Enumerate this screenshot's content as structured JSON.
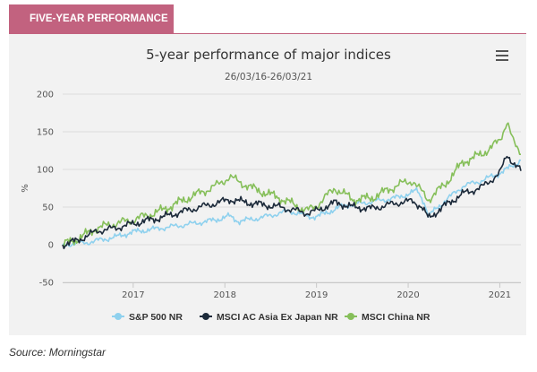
{
  "header": {
    "tab_label": "FIVE-YEAR PERFORMANCE"
  },
  "source": "Source: Morningstar",
  "menu": {
    "icon": "hamburger-menu-icon"
  },
  "chart_data": {
    "type": "line",
    "title": "5-year performance of major indices",
    "subtitle": "26/03/16-26/03/21",
    "xlabel": "",
    "ylabel": "%",
    "ylim": [
      -50,
      200
    ],
    "yticks": [
      200,
      150,
      100,
      50,
      0,
      -50
    ],
    "xlim": [
      2016.23,
      2021.23
    ],
    "xticks": [
      {
        "label": "2017",
        "value": 2017.0
      },
      {
        "label": "2018",
        "value": 2018.0
      },
      {
        "label": "2019",
        "value": 2019.0
      },
      {
        "label": "2020",
        "value": 2020.0
      },
      {
        "label": "2021",
        "value": 2021.0
      }
    ],
    "grid": true,
    "legend_position": "bottom",
    "series": [
      {
        "name": "S&P 500 NR",
        "color": "#8fd1ee",
        "x": [
          2016.23,
          2016.5,
          2016.8,
          2017.0,
          2017.3,
          2017.6,
          2017.9,
          2018.05,
          2018.15,
          2018.4,
          2018.7,
          2018.9,
          2019.0,
          2019.3,
          2019.6,
          2019.9,
          2020.1,
          2020.18,
          2020.22,
          2020.4,
          2020.6,
          2020.8,
          2021.0,
          2021.1,
          2021.23
        ],
        "values": [
          0,
          3,
          10,
          17,
          22,
          27,
          33,
          38,
          31,
          36,
          45,
          38,
          37,
          52,
          57,
          63,
          72,
          55,
          38,
          58,
          78,
          85,
          95,
          102,
          112
        ]
      },
      {
        "name": "MSCI AC Asia Ex Japan NR",
        "color": "#1c2a3a",
        "x": [
          2016.23,
          2016.4,
          2016.6,
          2016.8,
          2017.0,
          2017.3,
          2017.6,
          2017.9,
          2018.05,
          2018.3,
          2018.6,
          2018.9,
          2019.0,
          2019.2,
          2019.4,
          2019.6,
          2019.9,
          2020.05,
          2020.15,
          2020.22,
          2020.4,
          2020.6,
          2020.8,
          2021.0,
          2021.08,
          2021.15,
          2021.23
        ],
        "values": [
          0,
          6,
          18,
          22,
          28,
          36,
          46,
          55,
          60,
          55,
          50,
          42,
          45,
          56,
          50,
          48,
          56,
          58,
          50,
          35,
          52,
          68,
          76,
          95,
          120,
          108,
          98
        ]
      },
      {
        "name": "MSCI China NR",
        "color": "#86bf5a",
        "x": [
          2016.23,
          2016.4,
          2016.6,
          2016.8,
          2017.0,
          2017.3,
          2017.6,
          2017.9,
          2018.05,
          2018.3,
          2018.6,
          2018.9,
          2019.0,
          2019.2,
          2019.4,
          2019.6,
          2019.9,
          2020.05,
          2020.15,
          2020.22,
          2020.4,
          2020.6,
          2020.8,
          2021.0,
          2021.08,
          2021.15,
          2021.23
        ],
        "values": [
          0,
          8,
          22,
          28,
          33,
          45,
          62,
          78,
          90,
          75,
          62,
          45,
          52,
          75,
          60,
          62,
          80,
          85,
          70,
          60,
          80,
          110,
          120,
          138,
          165,
          135,
          120
        ]
      }
    ]
  }
}
